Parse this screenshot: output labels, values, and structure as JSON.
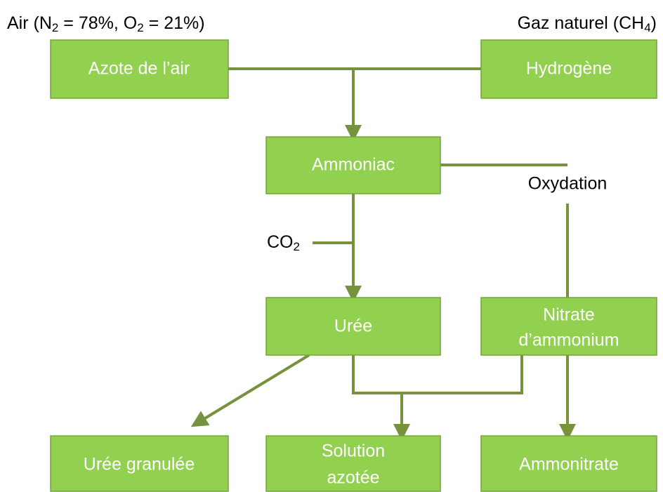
{
  "sources": [
    {
      "parts": [
        "Air (N",
        "2",
        " = 78%, O",
        "2",
        " = 21%)"
      ]
    },
    {
      "parts": [
        "Gaz naturel (CH",
        "4",
        ")"
      ]
    }
  ],
  "nodes": [
    {
      "lines": [
        "Azote de l’air"
      ]
    },
    {
      "lines": [
        "Hydrogène"
      ]
    },
    {
      "lines": [
        "Ammoniac"
      ]
    },
    {
      "lines": [
        "Urée"
      ]
    },
    {
      "lines": [
        "Nitrate",
        "d’ammonium"
      ]
    },
    {
      "lines": [
        "Urée granulée"
      ]
    },
    {
      "lines": [
        "Solution",
        "azotée"
      ]
    },
    {
      "lines": [
        "Ammonitrate"
      ]
    }
  ],
  "annotations": {
    "oxydation": "Oxydation",
    "co2": [
      "CO",
      "2"
    ]
  }
}
